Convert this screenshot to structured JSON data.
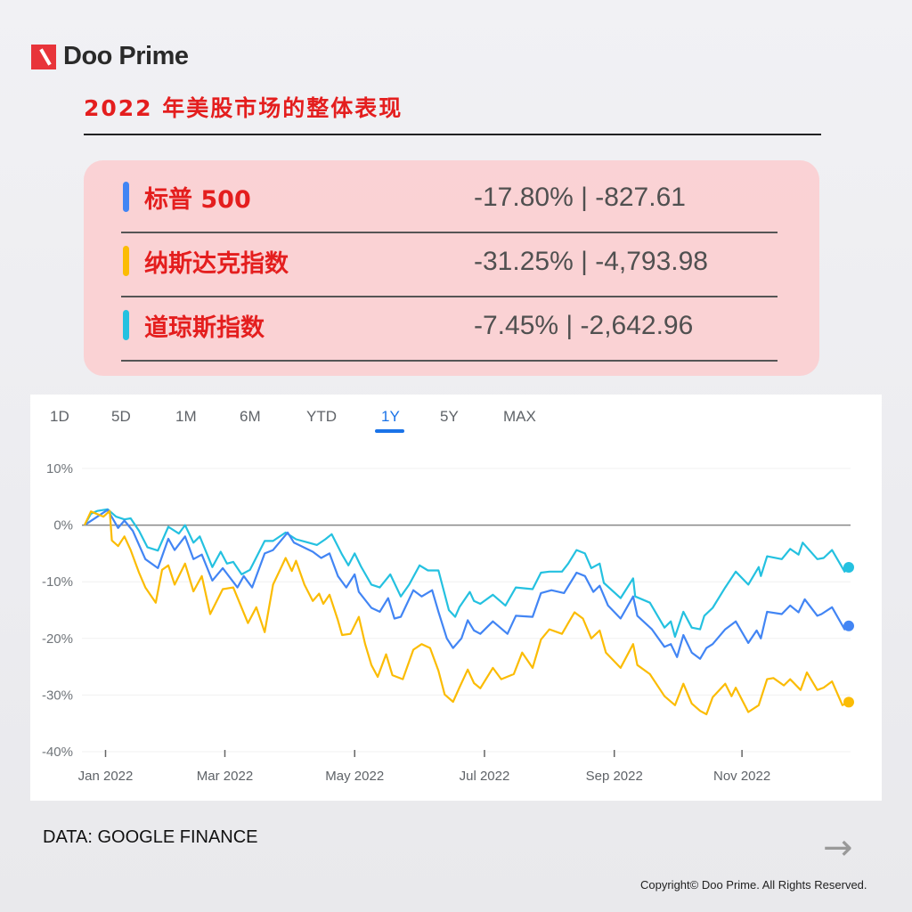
{
  "brand": {
    "name": "Doo Prime"
  },
  "header": {
    "title": "2022 年美股市场的整体表现"
  },
  "stats": [
    {
      "name": "标普 500",
      "value": "-17.80% | -827.61",
      "color": "#4285f4"
    },
    {
      "name": "纳斯达克指数",
      "value": "-31.25% | -4,793.98",
      "color": "#fbbc04"
    },
    {
      "name": "道琼斯指数",
      "value": "-7.45% | -2,642.96",
      "color": "#24c1e0"
    }
  ],
  "tabs": [
    {
      "label": "1D"
    },
    {
      "label": "5D"
    },
    {
      "label": "1M"
    },
    {
      "label": "6M"
    },
    {
      "label": "YTD"
    },
    {
      "label": "1Y",
      "active": true
    },
    {
      "label": "5Y"
    },
    {
      "label": "MAX"
    }
  ],
  "chart_data": {
    "type": "line",
    "title": "",
    "xlabel": "",
    "ylabel": "",
    "ylim": [
      -40,
      10
    ],
    "xlim": [
      "2021-12-30",
      "2022-12-30"
    ],
    "y_ticks": [
      "10%",
      "0%",
      "-10%",
      "-20%",
      "-30%",
      "-40%"
    ],
    "y_tick_values": [
      10,
      0,
      -10,
      -20,
      -30,
      -40
    ],
    "x_ticks": [
      {
        "label": "Jan 2022",
        "date": "2022-01-09"
      },
      {
        "label": "Mar 2022",
        "date": "2022-03-07"
      },
      {
        "label": "May 2022",
        "date": "2022-05-08"
      },
      {
        "label": "Jul 2022",
        "date": "2022-07-09"
      },
      {
        "label": "Sep 2022",
        "date": "2022-09-09"
      },
      {
        "label": "Nov 2022",
        "date": "2022-11-09"
      }
    ],
    "grid": true,
    "series": [
      {
        "color": "#4285f4",
        "points": [
          [
            "2021-12-30",
            0
          ],
          [
            "2022-01-10",
            2.7
          ],
          [
            "2022-01-15",
            -0.5
          ],
          [
            "2022-01-18",
            0.8
          ],
          [
            "2022-01-22",
            -1
          ],
          [
            "2022-01-28",
            -6
          ],
          [
            "2022-02-03",
            -7.6
          ],
          [
            "2022-02-08",
            -2.4
          ],
          [
            "2022-02-11",
            -4.4
          ],
          [
            "2022-02-16",
            -2
          ],
          [
            "2022-02-20",
            -6
          ],
          [
            "2022-02-24",
            -5.2
          ],
          [
            "2022-03-01",
            -9.8
          ],
          [
            "2022-03-06",
            -7.6
          ],
          [
            "2022-03-13",
            -11
          ],
          [
            "2022-03-16",
            -9
          ],
          [
            "2022-03-20",
            -11
          ],
          [
            "2022-03-26",
            -5
          ],
          [
            "2022-03-30",
            -4.4
          ],
          [
            "2022-04-06",
            -1.3
          ],
          [
            "2022-04-09",
            -3.1
          ],
          [
            "2022-04-18",
            -4.7
          ],
          [
            "2022-04-22",
            -5.8
          ],
          [
            "2022-04-26",
            -5
          ],
          [
            "2022-04-30",
            -9
          ],
          [
            "2022-05-04",
            -11
          ],
          [
            "2022-05-08",
            -8.7
          ],
          [
            "2022-05-10",
            -11.8
          ],
          [
            "2022-05-16",
            -14.6
          ],
          [
            "2022-05-20",
            -15.3
          ],
          [
            "2022-05-24",
            -12.9
          ],
          [
            "2022-05-27",
            -16.5
          ],
          [
            "2022-05-30",
            -16.2
          ],
          [
            "2022-06-05",
            -11.5
          ],
          [
            "2022-06-09",
            -12.6
          ],
          [
            "2022-06-14",
            -11.5
          ],
          [
            "2022-06-17",
            -15.3
          ],
          [
            "2022-06-21",
            -20
          ],
          [
            "2022-06-24",
            -21.7
          ],
          [
            "2022-06-28",
            -20
          ],
          [
            "2022-07-01",
            -16.8
          ],
          [
            "2022-07-04",
            -18.6
          ],
          [
            "2022-07-07",
            -19.2
          ],
          [
            "2022-07-13",
            -17
          ],
          [
            "2022-07-20",
            -19.2
          ],
          [
            "2022-07-24",
            -16
          ],
          [
            "2022-08-01",
            -16.2
          ],
          [
            "2022-08-05",
            -12
          ],
          [
            "2022-08-10",
            -11.5
          ],
          [
            "2022-08-16",
            -12
          ],
          [
            "2022-08-22",
            -8.4
          ],
          [
            "2022-08-26",
            -9
          ],
          [
            "2022-08-30",
            -11.8
          ],
          [
            "2022-09-02",
            -10.7
          ],
          [
            "2022-09-06",
            -14.2
          ],
          [
            "2022-09-12",
            -16.5
          ],
          [
            "2022-09-18",
            -12.6
          ],
          [
            "2022-09-20",
            -16
          ],
          [
            "2022-09-27",
            -18.4
          ],
          [
            "2022-10-03",
            -21.5
          ],
          [
            "2022-10-06",
            -21
          ],
          [
            "2022-10-09",
            -23.3
          ],
          [
            "2022-10-12",
            -19.4
          ],
          [
            "2022-10-16",
            -22.5
          ],
          [
            "2022-10-20",
            -23.6
          ],
          [
            "2022-10-23",
            -21.7
          ],
          [
            "2022-10-26",
            -21
          ],
          [
            "2022-11-01",
            -18.4
          ],
          [
            "2022-11-06",
            -17
          ],
          [
            "2022-11-12",
            -20.8
          ],
          [
            "2022-11-16",
            -18.6
          ],
          [
            "2022-11-18",
            -20
          ],
          [
            "2022-11-21",
            -15.3
          ],
          [
            "2022-11-28",
            -15.7
          ],
          [
            "2022-12-02",
            -14.2
          ],
          [
            "2022-12-06",
            -15.4
          ],
          [
            "2022-12-09",
            -13.1
          ],
          [
            "2022-12-15",
            -16
          ],
          [
            "2022-12-17",
            -15.7
          ],
          [
            "2022-12-22",
            -14.5
          ],
          [
            "2022-12-28",
            -18.4
          ],
          [
            "2022-12-30",
            -17.8
          ]
        ]
      },
      {
        "color": "#fbbc04",
        "points": [
          [
            "2021-12-30",
            0
          ],
          [
            "2022-01-02",
            2.4
          ],
          [
            "2022-01-08",
            1.5
          ],
          [
            "2022-01-11",
            2.5
          ],
          [
            "2022-01-12",
            -2.7
          ],
          [
            "2022-01-15",
            -3.7
          ],
          [
            "2022-01-18",
            -2
          ],
          [
            "2022-01-21",
            -4.4
          ],
          [
            "2022-01-25",
            -8.4
          ],
          [
            "2022-01-28",
            -11
          ],
          [
            "2022-02-02",
            -13.7
          ],
          [
            "2022-02-05",
            -7.9
          ],
          [
            "2022-02-08",
            -7.1
          ],
          [
            "2022-02-11",
            -10.5
          ],
          [
            "2022-02-16",
            -6.8
          ],
          [
            "2022-02-20",
            -11.7
          ],
          [
            "2022-02-24",
            -9
          ],
          [
            "2022-02-28",
            -15.7
          ],
          [
            "2022-03-06",
            -11.3
          ],
          [
            "2022-03-11",
            -11
          ],
          [
            "2022-03-18",
            -17.3
          ],
          [
            "2022-03-22",
            -14.5
          ],
          [
            "2022-03-26",
            -18.9
          ],
          [
            "2022-03-30",
            -10.5
          ],
          [
            "2022-04-05",
            -5.8
          ],
          [
            "2022-04-08",
            -8.1
          ],
          [
            "2022-04-10",
            -6.3
          ],
          [
            "2022-04-14",
            -10.5
          ],
          [
            "2022-04-18",
            -13.4
          ],
          [
            "2022-04-21",
            -12.1
          ],
          [
            "2022-04-23",
            -13.9
          ],
          [
            "2022-04-26",
            -12.3
          ],
          [
            "2022-04-30",
            -16.8
          ],
          [
            "2022-05-02",
            -19.4
          ],
          [
            "2022-05-06",
            -19.2
          ],
          [
            "2022-05-10",
            -16.2
          ],
          [
            "2022-05-13",
            -21
          ],
          [
            "2022-05-16",
            -24.7
          ],
          [
            "2022-05-19",
            -26.8
          ],
          [
            "2022-05-23",
            -22.8
          ],
          [
            "2022-05-26",
            -26.5
          ],
          [
            "2022-05-31",
            -27.2
          ],
          [
            "2022-06-05",
            -22
          ],
          [
            "2022-06-09",
            -21
          ],
          [
            "2022-06-13",
            -21.7
          ],
          [
            "2022-06-17",
            -25.7
          ],
          [
            "2022-06-20",
            -29.9
          ],
          [
            "2022-06-24",
            -31.2
          ],
          [
            "2022-06-27",
            -28.7
          ],
          [
            "2022-07-01",
            -25.5
          ],
          [
            "2022-07-04",
            -27.9
          ],
          [
            "2022-07-07",
            -28.8
          ],
          [
            "2022-07-13",
            -25.2
          ],
          [
            "2022-07-17",
            -27.2
          ],
          [
            "2022-07-23",
            -26.3
          ],
          [
            "2022-07-27",
            -22.5
          ],
          [
            "2022-08-01",
            -25.2
          ],
          [
            "2022-08-05",
            -20.2
          ],
          [
            "2022-08-09",
            -18.4
          ],
          [
            "2022-08-15",
            -19.2
          ],
          [
            "2022-08-18",
            -17.3
          ],
          [
            "2022-08-21",
            -15.4
          ],
          [
            "2022-08-25",
            -16.5
          ],
          [
            "2022-08-29",
            -20
          ],
          [
            "2022-09-02",
            -18.6
          ],
          [
            "2022-09-05",
            -22.5
          ],
          [
            "2022-09-12",
            -25.2
          ],
          [
            "2022-09-18",
            -21
          ],
          [
            "2022-09-20",
            -24.7
          ],
          [
            "2022-09-26",
            -26.3
          ],
          [
            "2022-10-03",
            -30.2
          ],
          [
            "2022-10-08",
            -31.8
          ],
          [
            "2022-10-12",
            -28
          ],
          [
            "2022-10-16",
            -31.5
          ],
          [
            "2022-10-20",
            -32.8
          ],
          [
            "2022-10-23",
            -33.4
          ],
          [
            "2022-10-26",
            -30.4
          ],
          [
            "2022-11-01",
            -28
          ],
          [
            "2022-11-04",
            -30.2
          ],
          [
            "2022-11-06",
            -28.7
          ],
          [
            "2022-11-12",
            -33
          ],
          [
            "2022-11-17",
            -31.8
          ],
          [
            "2022-11-21",
            -27.2
          ],
          [
            "2022-11-24",
            -27
          ],
          [
            "2022-11-29",
            -28.3
          ],
          [
            "2022-12-02",
            -27.2
          ],
          [
            "2022-12-07",
            -29.1
          ],
          [
            "2022-12-10",
            -26
          ],
          [
            "2022-12-15",
            -29.1
          ],
          [
            "2022-12-18",
            -28.7
          ],
          [
            "2022-12-22",
            -27.6
          ],
          [
            "2022-12-27",
            -31.8
          ],
          [
            "2022-12-30",
            -31.25
          ]
        ]
      },
      {
        "color": "#24c1e0",
        "points": [
          [
            "2021-12-30",
            0
          ],
          [
            "2022-01-02",
            2
          ],
          [
            "2022-01-05",
            2.5
          ],
          [
            "2022-01-10",
            2.8
          ],
          [
            "2022-01-14",
            1.5
          ],
          [
            "2022-01-18",
            1
          ],
          [
            "2022-01-21",
            1.2
          ],
          [
            "2022-01-25",
            -1
          ],
          [
            "2022-01-29",
            -3.9
          ],
          [
            "2022-02-03",
            -4.5
          ],
          [
            "2022-02-08",
            -0.3
          ],
          [
            "2022-02-13",
            -1.5
          ],
          [
            "2022-02-16",
            0
          ],
          [
            "2022-02-20",
            -3.1
          ],
          [
            "2022-02-23",
            -2
          ],
          [
            "2022-03-01",
            -7.4
          ],
          [
            "2022-03-05",
            -4.7
          ],
          [
            "2022-03-08",
            -6.8
          ],
          [
            "2022-03-11",
            -6.5
          ],
          [
            "2022-03-15",
            -8.7
          ],
          [
            "2022-03-19",
            -7.9
          ],
          [
            "2022-03-26",
            -2.8
          ],
          [
            "2022-03-30",
            -2.8
          ],
          [
            "2022-04-05",
            -1.3
          ],
          [
            "2022-04-10",
            -2.5
          ],
          [
            "2022-04-15",
            -3
          ],
          [
            "2022-04-20",
            -3.5
          ],
          [
            "2022-04-24",
            -2.5
          ],
          [
            "2022-04-27",
            -1.6
          ],
          [
            "2022-05-02",
            -5.2
          ],
          [
            "2022-05-05",
            -7.1
          ],
          [
            "2022-05-08",
            -5
          ],
          [
            "2022-05-11",
            -7.3
          ],
          [
            "2022-05-16",
            -10.5
          ],
          [
            "2022-05-20",
            -11
          ],
          [
            "2022-05-25",
            -8.7
          ],
          [
            "2022-05-30",
            -12.6
          ],
          [
            "2022-06-03",
            -10.5
          ],
          [
            "2022-06-08",
            -7.1
          ],
          [
            "2022-06-12",
            -8
          ],
          [
            "2022-06-17",
            -8
          ],
          [
            "2022-06-22",
            -15
          ],
          [
            "2022-06-25",
            -16.2
          ],
          [
            "2022-06-27",
            -14.5
          ],
          [
            "2022-07-02",
            -11.8
          ],
          [
            "2022-07-04",
            -13.4
          ],
          [
            "2022-07-07",
            -13.9
          ],
          [
            "2022-07-13",
            -12.3
          ],
          [
            "2022-07-19",
            -14.2
          ],
          [
            "2022-07-24",
            -11
          ],
          [
            "2022-08-01",
            -11.3
          ],
          [
            "2022-08-05",
            -8.4
          ],
          [
            "2022-08-09",
            -8.2
          ],
          [
            "2022-08-15",
            -8.2
          ],
          [
            "2022-08-18",
            -6.8
          ],
          [
            "2022-08-22",
            -4.4
          ],
          [
            "2022-08-26",
            -5
          ],
          [
            "2022-08-29",
            -7.6
          ],
          [
            "2022-09-02",
            -6.8
          ],
          [
            "2022-09-04",
            -10.2
          ],
          [
            "2022-09-12",
            -12.9
          ],
          [
            "2022-09-18",
            -9.4
          ],
          [
            "2022-09-19",
            -12.6
          ],
          [
            "2022-09-26",
            -13.7
          ],
          [
            "2022-10-03",
            -18.1
          ],
          [
            "2022-10-06",
            -17
          ],
          [
            "2022-10-08",
            -19.7
          ],
          [
            "2022-10-12",
            -15.3
          ],
          [
            "2022-10-16",
            -18.1
          ],
          [
            "2022-10-20",
            -18.4
          ],
          [
            "2022-10-22",
            -16
          ],
          [
            "2022-10-26",
            -14.6
          ],
          [
            "2022-11-01",
            -11
          ],
          [
            "2022-11-06",
            -8.2
          ],
          [
            "2022-11-12",
            -10.5
          ],
          [
            "2022-11-17",
            -7.4
          ],
          [
            "2022-11-18",
            -9
          ],
          [
            "2022-11-21",
            -5.5
          ],
          [
            "2022-11-28",
            -6
          ],
          [
            "2022-12-02",
            -4.2
          ],
          [
            "2022-12-06",
            -5.2
          ],
          [
            "2022-12-08",
            -3.1
          ],
          [
            "2022-12-15",
            -6
          ],
          [
            "2022-12-18",
            -5.8
          ],
          [
            "2022-12-22",
            -4.4
          ],
          [
            "2022-12-28",
            -8.2
          ],
          [
            "2022-12-30",
            -7.45
          ]
        ]
      }
    ]
  },
  "footer": {
    "source": "DATA: GOOGLE FINANCE",
    "copyright": "Copyright© Doo Prime. All Rights Reserved.",
    "next_icon": "arrow-right-icon"
  }
}
